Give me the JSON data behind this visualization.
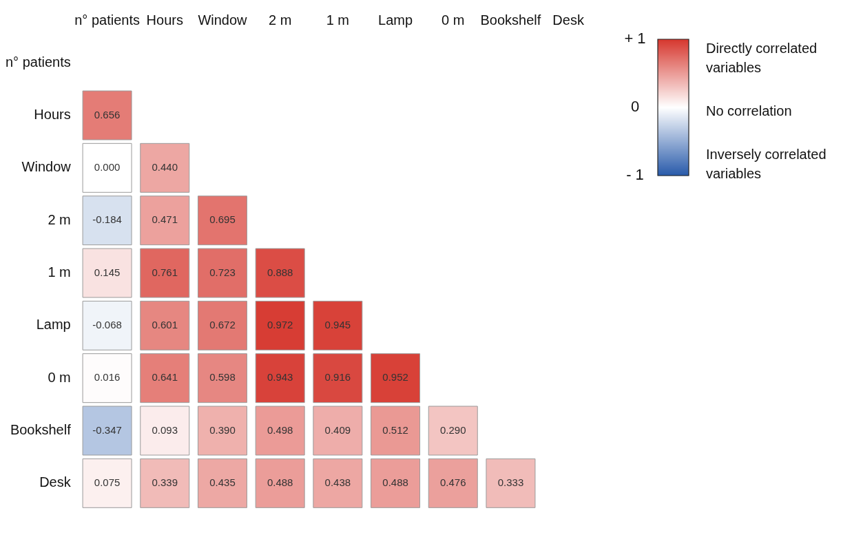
{
  "chart_data": {
    "type": "heatmap",
    "categories": [
      "n° patients",
      "Hours",
      "Window",
      "2 m",
      "1 m",
      "Lamp",
      "0 m",
      "Bookshelf",
      "Desk"
    ],
    "y_categories": [
      "n° patients",
      "Hours",
      "Window",
      "2 m",
      "1 m",
      "Lamp",
      "0 m",
      "Bookshelf",
      "Desk"
    ],
    "cells": [
      [
        null,
        null,
        null,
        null,
        null,
        null,
        null,
        null,
        null
      ],
      [
        0.656,
        null,
        null,
        null,
        null,
        null,
        null,
        null,
        null
      ],
      [
        0.0,
        0.44,
        null,
        null,
        null,
        null,
        null,
        null,
        null
      ],
      [
        -0.184,
        0.471,
        0.695,
        null,
        null,
        null,
        null,
        null,
        null
      ],
      [
        0.145,
        0.761,
        0.723,
        0.888,
        null,
        null,
        null,
        null,
        null
      ],
      [
        -0.068,
        0.601,
        0.672,
        0.972,
        0.945,
        null,
        null,
        null,
        null
      ],
      [
        0.016,
        0.641,
        0.598,
        0.943,
        0.916,
        0.952,
        null,
        null,
        null
      ],
      [
        -0.347,
        0.093,
        0.39,
        0.498,
        0.409,
        0.512,
        0.29,
        null,
        null
      ],
      [
        0.075,
        0.339,
        0.435,
        0.488,
        0.438,
        0.488,
        0.476,
        0.333,
        null
      ]
    ],
    "cell_labels": [
      [
        null,
        null,
        null,
        null,
        null,
        null,
        null,
        null,
        null
      ],
      [
        "0.656",
        null,
        null,
        null,
        null,
        null,
        null,
        null,
        null
      ],
      [
        "0.000",
        "0.440",
        null,
        null,
        null,
        null,
        null,
        null,
        null
      ],
      [
        "-0.184",
        "0.471",
        "0.695",
        null,
        null,
        null,
        null,
        null,
        null
      ],
      [
        "0.145",
        "0.761",
        "0.723",
        "0.888",
        null,
        null,
        null,
        null,
        null
      ],
      [
        "-0.068",
        "0.601",
        "0.672",
        "0.972",
        "0.945",
        null,
        null,
        null,
        null
      ],
      [
        "0.016",
        "0.641",
        "0.598",
        "0.943",
        "0.916",
        "0.952",
        null,
        null,
        null
      ],
      [
        "-0.347",
        "0.093",
        "0.390",
        "0.498",
        "0.409",
        "0.512",
        "0.290",
        null,
        null
      ],
      [
        "0.075",
        "0.339",
        "0.435",
        "0.488",
        "0.438",
        "0.488",
        "0.476",
        "0.333",
        null
      ]
    ],
    "clim": [
      -1,
      1
    ],
    "cticks": [
      {
        "value": 1,
        "label": "+ 1"
      },
      {
        "value": 0,
        "label": "0"
      },
      {
        "value": -1,
        "label": "- 1"
      }
    ],
    "annotations": [
      "Directly correlated variables",
      "No correlation",
      "Inversely correlated variables"
    ]
  }
}
